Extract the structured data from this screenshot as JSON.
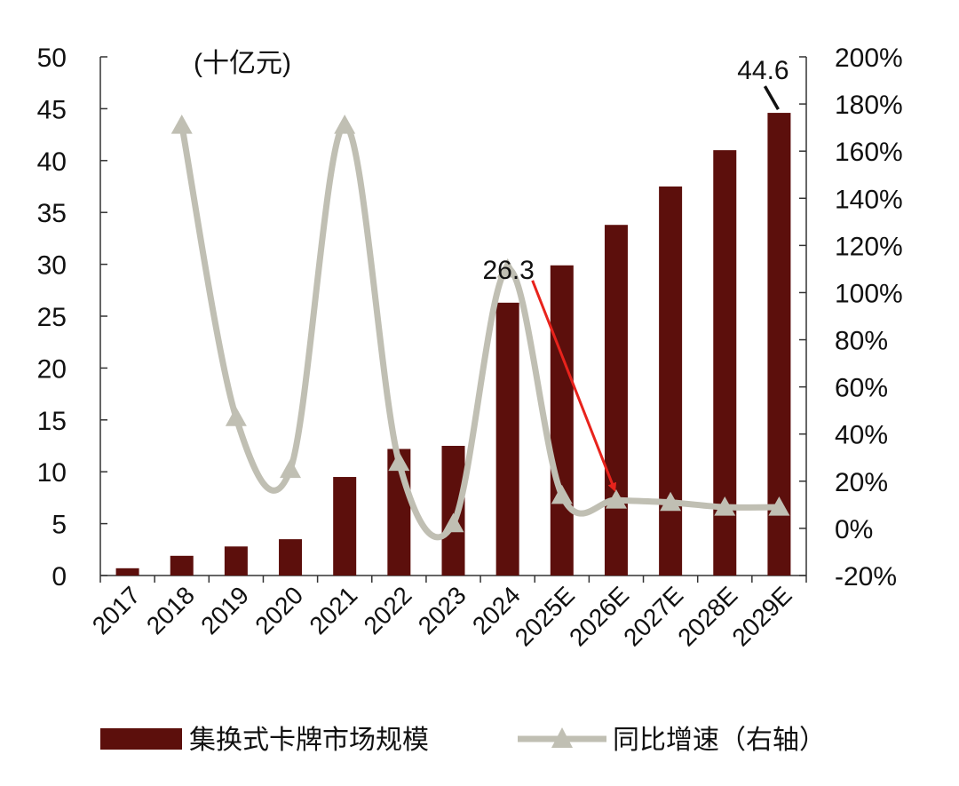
{
  "chart_data": {
    "type": "bar",
    "unit_label": "(十亿元)",
    "categories": [
      "2017",
      "2018",
      "2019",
      "2020",
      "2021",
      "2022",
      "2023",
      "2024",
      "2025E",
      "2026E",
      "2027E",
      "2028E",
      "2029E"
    ],
    "series": [
      {
        "name": "集换式卡牌市场规模",
        "type": "bar",
        "axis": "left",
        "color": "#5c0f0c",
        "values": [
          0.7,
          1.9,
          2.8,
          3.5,
          9.5,
          12.2,
          12.5,
          26.3,
          29.9,
          33.8,
          37.5,
          41.0,
          44.6
        ]
      },
      {
        "name": "同比增速（右轴）",
        "type": "line",
        "axis": "right",
        "color": "#c0bfb3",
        "marker": "triangle",
        "values": [
          null,
          171,
          47,
          25,
          171,
          28,
          2,
          110,
          14,
          12,
          11,
          9,
          9
        ]
      }
    ],
    "y_left": {
      "min": 0,
      "max": 50,
      "ticks": [
        "0",
        "5",
        "10",
        "15",
        "20",
        "25",
        "30",
        "35",
        "40",
        "45",
        "50"
      ]
    },
    "y_right": {
      "min": -20,
      "max": 200,
      "ticks": [
        "-20%",
        "0%",
        "20%",
        "40%",
        "60%",
        "80%",
        "100%",
        "120%",
        "140%",
        "160%",
        "180%",
        "200%"
      ]
    },
    "annotations": [
      {
        "text": "26.3",
        "category": "2024",
        "value": 26.3
      },
      {
        "text": "44.6",
        "category": "2029E",
        "value": 44.6
      }
    ],
    "arrow": {
      "from_category": "2024",
      "to_category": "2026E",
      "color": "#e8231c"
    },
    "grid": false,
    "legend_position": "bottom"
  }
}
